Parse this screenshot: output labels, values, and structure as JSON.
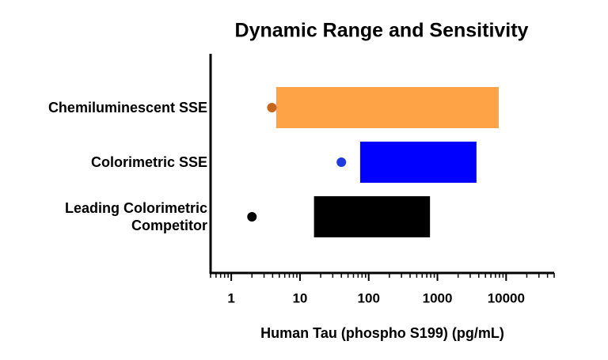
{
  "chart_data": {
    "type": "floating-bar",
    "title": "Dynamic Range and Sensitivity",
    "x_label": "Human Tau (phospho S199) (pg/mL)",
    "categories": [
      "Chemiluminescent SSE",
      "Colorimetric SSE",
      "Leading Colorimetric Competitor"
    ],
    "low": [
      4.5,
      75,
      16
    ],
    "high": [
      7800,
      3700,
      780
    ],
    "sensitivity": [
      3.9,
      40,
      2
    ],
    "colors": [
      "#ffa347",
      "#0000ff",
      "#000000"
    ],
    "dot_colors": [
      "#c8651c",
      "#1f3be0",
      "#000000"
    ],
    "xlim": [
      0.5,
      50000
    ],
    "xticks": [
      1,
      10,
      100,
      1000,
      10000
    ],
    "x_log": true,
    "minor_ticks": true
  }
}
